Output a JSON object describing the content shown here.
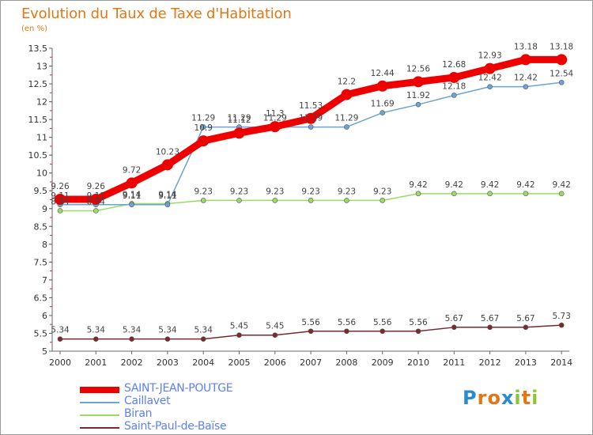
{
  "header": {
    "title": "Evolution du Taux de Taxe d'Habitation",
    "subtitle": "(en %)"
  },
  "chart_data": {
    "type": "line",
    "title": "Evolution du Taux de Taxe d'Habitation",
    "subtitle": "(en %)",
    "xlabel": "",
    "ylabel": "",
    "categories": [
      "2000",
      "2001",
      "2002",
      "2003",
      "2004",
      "2005",
      "2006",
      "2007",
      "2008",
      "2009",
      "2010",
      "2011",
      "2012",
      "2013",
      "2014"
    ],
    "ylim": [
      5,
      13.5
    ],
    "yticks": [
      "5",
      "5.5",
      "6",
      "6.5",
      "7",
      "7.5",
      "8",
      "8.5",
      "9",
      "9.5",
      "10",
      "10.5",
      "11",
      "11.5",
      "12",
      "12.5",
      "13",
      "13.5"
    ],
    "grid": false,
    "legend_position": "bottom-left",
    "series": [
      {
        "name": "SAINT-JEAN-POUTGE",
        "color": "#ee0000",
        "values": [
          9.26,
          9.26,
          9.72,
          10.23,
          10.9,
          11.12,
          11.3,
          11.53,
          12.2,
          12.44,
          12.56,
          12.68,
          12.93,
          13.18,
          13.18
        ],
        "labels": [
          "9.26",
          "9.26",
          "9.72",
          "10.23",
          "10.9",
          "11.12",
          "11.3",
          "11.53",
          "12.2",
          "12.44",
          "12.56",
          "12.68",
          "12.93",
          "13.18",
          "13.18"
        ]
      },
      {
        "name": "Caillavet",
        "color": "#6ba4d6",
        "values": [
          9.11,
          9.11,
          9.11,
          9.11,
          11.29,
          11.29,
          11.29,
          11.29,
          11.29,
          11.69,
          11.92,
          12.18,
          12.42,
          12.42,
          12.54
        ],
        "labels": [
          "9.11",
          "9.11",
          "9.11",
          "9.11",
          "11.29",
          "11.29",
          "11.29",
          "11.29",
          "11.29",
          "11.69",
          "11.92",
          "12.18",
          "12.42",
          "12.42",
          "12.54"
        ]
      },
      {
        "name": "Biran",
        "color": "#99dd66",
        "values": [
          8.94,
          8.94,
          9.14,
          9.14,
          9.23,
          9.23,
          9.23,
          9.23,
          9.23,
          9.23,
          9.42,
          9.42,
          9.42,
          9.42,
          9.42
        ],
        "labels": [
          "8.94",
          "8.94",
          "9.14",
          "9.14",
          "9.23",
          "9.23",
          "9.23",
          "9.23",
          "9.23",
          "9.23",
          "9.42",
          "9.42",
          "9.42",
          "9.42",
          "9.42"
        ]
      },
      {
        "name": "Saint-Paul-de-Baïse",
        "color": "#7a2a2a",
        "values": [
          5.34,
          5.34,
          5.34,
          5.34,
          5.34,
          5.45,
          5.45,
          5.56,
          5.56,
          5.56,
          5.56,
          5.67,
          5.67,
          5.67,
          5.73
        ],
        "labels": [
          "5.34",
          "5.34",
          "5.34",
          "5.34",
          "5.34",
          "5.45",
          "5.45",
          "5.56",
          "5.56",
          "5.56",
          "5.56",
          "5.67",
          "5.67",
          "5.67",
          "5.73"
        ]
      }
    ]
  },
  "legend": {
    "items": [
      {
        "label": "SAINT-JEAN-POUTGE",
        "color": "#ee0000"
      },
      {
        "label": "Caillavet",
        "color": "#6ba4d6"
      },
      {
        "label": "Biran",
        "color": "#99dd66"
      },
      {
        "label": "Saint-Paul-de-Baïse",
        "color": "#7a2a2a"
      }
    ]
  },
  "logo": {
    "text": "Proxiti",
    "letters": [
      {
        "char": "P",
        "color": "#2a8ad0"
      },
      {
        "char": "r",
        "color": "#e07818"
      },
      {
        "char": "o",
        "color": "#e07818"
      },
      {
        "char": "x",
        "color": "#2a8ad0"
      },
      {
        "char": "i",
        "color": "#8cc43c"
      },
      {
        "char": "t",
        "color": "#e07818"
      },
      {
        "char": "i",
        "color": "#8cc43c"
      }
    ]
  }
}
